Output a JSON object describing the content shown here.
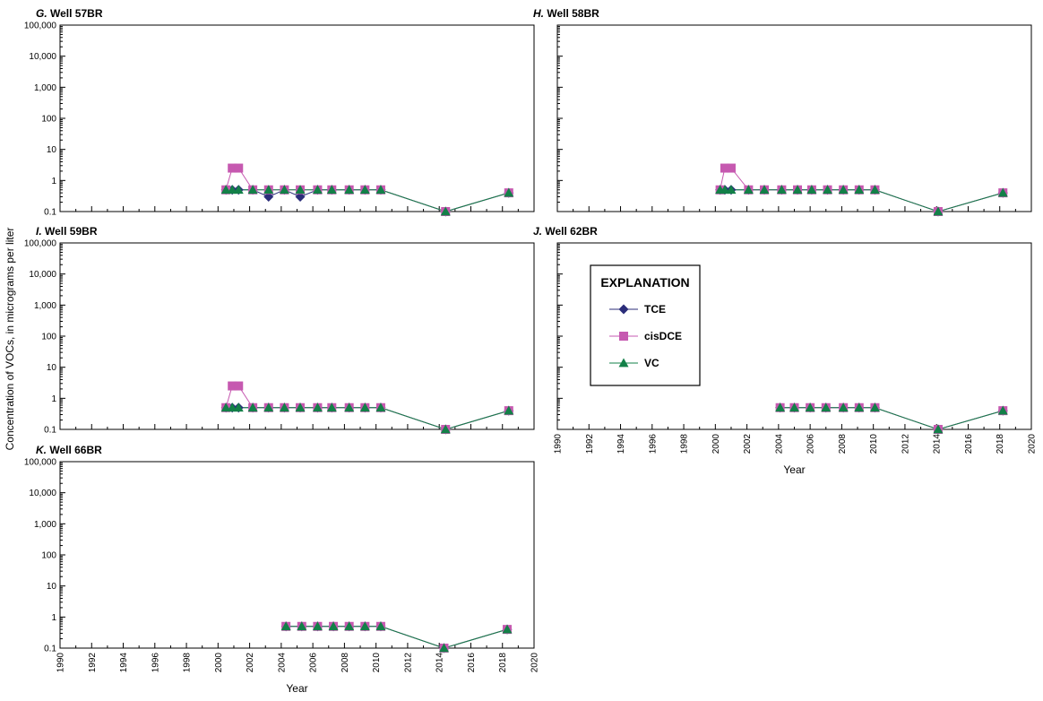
{
  "figure": {
    "ylabel": "Concentration of VOCs, in micrograms per liter",
    "colors": {
      "TCE": "#2b2d7a",
      "cisDCE": "#c659b0",
      "VC": "#138048",
      "axis": "#000000"
    },
    "legend": {
      "title": "EXPLANATION",
      "placement": "inside panel J, upper-left",
      "entries": [
        {
          "name": "TCE",
          "marker": "diamond"
        },
        {
          "name": "cisDCE",
          "marker": "square"
        },
        {
          "name": "VC",
          "marker": "triangle"
        }
      ]
    }
  },
  "chart_data": [
    {
      "type": "line",
      "letter": "G.",
      "name": "Well 57BR",
      "xlabel": "",
      "yscale": "log",
      "ylim": [
        0.1,
        100000
      ],
      "xlim": [
        1990,
        2020
      ],
      "yticks": [
        "100,000",
        "10,000",
        "1,000",
        "100",
        "10",
        "1",
        "0.1"
      ],
      "xticks": [],
      "series": [
        {
          "name": "TCE",
          "x": [
            2000.5,
            2000.9,
            2001.3,
            2002.2,
            2003.2,
            2004.2,
            2005.2,
            2006.3,
            2007.2,
            2008.3,
            2009.3,
            2010.3,
            2014.4,
            2018.4
          ],
          "y": [
            0.5,
            0.5,
            0.5,
            0.5,
            0.3,
            0.5,
            0.3,
            0.5,
            0.5,
            0.5,
            0.5,
            0.5,
            0.1,
            0.4
          ]
        },
        {
          "name": "cisDCE",
          "x": [
            2000.5,
            2000.9,
            2001.3,
            2002.2,
            2003.2,
            2004.2,
            2005.2,
            2006.3,
            2007.2,
            2008.3,
            2009.3,
            2010.3,
            2014.4,
            2018.4
          ],
          "y": [
            0.5,
            2.5,
            2.5,
            0.5,
            0.5,
            0.5,
            0.5,
            0.5,
            0.5,
            0.5,
            0.5,
            0.5,
            0.1,
            0.4
          ]
        },
        {
          "name": "VC",
          "x": [
            2000.5,
            2000.9,
            2001.3,
            2002.2,
            2003.2,
            2004.2,
            2005.2,
            2006.3,
            2007.2,
            2008.3,
            2009.3,
            2010.3,
            2014.4,
            2018.4
          ],
          "y": [
            0.5,
            0.5,
            0.5,
            0.5,
            0.5,
            0.5,
            0.5,
            0.5,
            0.5,
            0.5,
            0.5,
            0.5,
            0.1,
            0.4
          ]
        }
      ]
    },
    {
      "type": "line",
      "letter": "H.",
      "name": "Well 58BR",
      "xlabel": "",
      "yscale": "log",
      "ylim": [
        0.1,
        100000
      ],
      "xlim": [
        1990,
        2020
      ],
      "yticks": [],
      "xticks": [],
      "series": [
        {
          "name": "TCE",
          "x": [
            2000.3,
            2000.6,
            2001.0,
            2002.1,
            2003.1,
            2004.2,
            2005.2,
            2006.1,
            2007.1,
            2008.1,
            2009.1,
            2010.1,
            2014.1,
            2018.2
          ],
          "y": [
            0.5,
            0.5,
            0.5,
            0.5,
            0.5,
            0.5,
            0.5,
            0.5,
            0.5,
            0.5,
            0.5,
            0.5,
            0.1,
            0.4
          ]
        },
        {
          "name": "cisDCE",
          "x": [
            2000.3,
            2000.6,
            2001.0,
            2002.1,
            2003.1,
            2004.2,
            2005.2,
            2006.1,
            2007.1,
            2008.1,
            2009.1,
            2010.1,
            2014.1,
            2018.2
          ],
          "y": [
            0.5,
            2.5,
            2.5,
            0.5,
            0.5,
            0.5,
            0.5,
            0.5,
            0.5,
            0.5,
            0.5,
            0.5,
            0.1,
            0.4
          ]
        },
        {
          "name": "VC",
          "x": [
            2000.3,
            2000.6,
            2001.0,
            2002.1,
            2003.1,
            2004.2,
            2005.2,
            2006.1,
            2007.1,
            2008.1,
            2009.1,
            2010.1,
            2014.1,
            2018.2
          ],
          "y": [
            0.5,
            0.5,
            0.5,
            0.5,
            0.5,
            0.5,
            0.5,
            0.5,
            0.5,
            0.5,
            0.5,
            0.5,
            0.1,
            0.4
          ]
        }
      ]
    },
    {
      "type": "line",
      "letter": "I.",
      "name": "Well 59BR",
      "xlabel": "",
      "yscale": "log",
      "ylim": [
        0.1,
        100000
      ],
      "xlim": [
        1990,
        2020
      ],
      "yticks": [
        "100,000",
        "10,000",
        "1,000",
        "100",
        "10",
        "1",
        "0.1"
      ],
      "xticks": [],
      "series": [
        {
          "name": "TCE",
          "x": [
            2000.5,
            2000.9,
            2001.3,
            2002.2,
            2003.2,
            2004.2,
            2005.2,
            2006.3,
            2007.2,
            2008.3,
            2009.3,
            2010.3,
            2014.4,
            2018.4
          ],
          "y": [
            0.5,
            0.5,
            0.5,
            0.5,
            0.5,
            0.5,
            0.5,
            0.5,
            0.5,
            0.5,
            0.5,
            0.5,
            0.1,
            0.4
          ]
        },
        {
          "name": "cisDCE",
          "x": [
            2000.5,
            2000.9,
            2001.3,
            2002.2,
            2003.2,
            2004.2,
            2005.2,
            2006.3,
            2007.2,
            2008.3,
            2009.3,
            2010.3,
            2014.4,
            2018.4
          ],
          "y": [
            0.5,
            2.5,
            2.5,
            0.5,
            0.5,
            0.5,
            0.5,
            0.5,
            0.5,
            0.5,
            0.5,
            0.5,
            0.1,
            0.4
          ]
        },
        {
          "name": "VC",
          "x": [
            2000.5,
            2000.9,
            2001.3,
            2002.2,
            2003.2,
            2004.2,
            2005.2,
            2006.3,
            2007.2,
            2008.3,
            2009.3,
            2010.3,
            2014.4,
            2018.4
          ],
          "y": [
            0.5,
            0.5,
            0.5,
            0.5,
            0.5,
            0.5,
            0.5,
            0.5,
            0.5,
            0.5,
            0.5,
            0.5,
            0.1,
            0.4
          ]
        }
      ]
    },
    {
      "type": "line",
      "letter": "J.",
      "name": "Well 62BR",
      "xlabel": "Year",
      "yscale": "log",
      "ylim": [
        0.1,
        100000
      ],
      "xlim": [
        1990,
        2020
      ],
      "yticks": [],
      "xticks": [
        "1990",
        "1992",
        "1994",
        "1996",
        "1998",
        "2000",
        "2002",
        "2004",
        "2006",
        "2008",
        "2010",
        "2012",
        "2014",
        "2016",
        "2018",
        "2020"
      ],
      "series": [
        {
          "name": "TCE",
          "x": [
            2004.1,
            2005.0,
            2006.0,
            2007.0,
            2008.1,
            2009.1,
            2010.1,
            2014.1,
            2018.2
          ],
          "y": [
            0.5,
            0.5,
            0.5,
            0.5,
            0.5,
            0.5,
            0.5,
            0.1,
            0.4
          ]
        },
        {
          "name": "cisDCE",
          "x": [
            2004.1,
            2005.0,
            2006.0,
            2007.0,
            2008.1,
            2009.1,
            2010.1,
            2014.1,
            2018.2
          ],
          "y": [
            0.5,
            0.5,
            0.5,
            0.5,
            0.5,
            0.5,
            0.5,
            0.1,
            0.4
          ]
        },
        {
          "name": "VC",
          "x": [
            2004.1,
            2005.0,
            2006.0,
            2007.0,
            2008.1,
            2009.1,
            2010.1,
            2014.1,
            2018.2
          ],
          "y": [
            0.5,
            0.5,
            0.5,
            0.5,
            0.5,
            0.5,
            0.5,
            0.1,
            0.4
          ]
        }
      ]
    },
    {
      "type": "line",
      "letter": "K.",
      "name": "Well 66BR",
      "xlabel": "Year",
      "yscale": "log",
      "ylim": [
        0.1,
        100000
      ],
      "xlim": [
        1990,
        2020
      ],
      "yticks": [
        "100,000",
        "10,000",
        "1,000",
        "100",
        "10",
        "1",
        "0.1"
      ],
      "xticks": [
        "1990",
        "1992",
        "1994",
        "1996",
        "1998",
        "2000",
        "2002",
        "2004",
        "2006",
        "2008",
        "2010",
        "2012",
        "2014",
        "2016",
        "2018",
        "2020"
      ],
      "series": [
        {
          "name": "TCE",
          "x": [
            2004.3,
            2005.3,
            2006.3,
            2007.3,
            2008.3,
            2009.3,
            2010.3,
            2014.3,
            2018.3
          ],
          "y": [
            0.5,
            0.5,
            0.5,
            0.5,
            0.5,
            0.5,
            0.5,
            0.1,
            0.4
          ]
        },
        {
          "name": "cisDCE",
          "x": [
            2004.3,
            2005.3,
            2006.3,
            2007.3,
            2008.3,
            2009.3,
            2010.3,
            2014.3,
            2018.3
          ],
          "y": [
            0.5,
            0.5,
            0.5,
            0.5,
            0.5,
            0.5,
            0.5,
            0.1,
            0.4
          ]
        },
        {
          "name": "VC",
          "x": [
            2004.3,
            2005.3,
            2006.3,
            2007.3,
            2008.3,
            2009.3,
            2010.3,
            2014.3,
            2018.3
          ],
          "y": [
            0.5,
            0.5,
            0.5,
            0.5,
            0.5,
            0.5,
            0.5,
            0.1,
            0.4
          ]
        }
      ]
    }
  ]
}
